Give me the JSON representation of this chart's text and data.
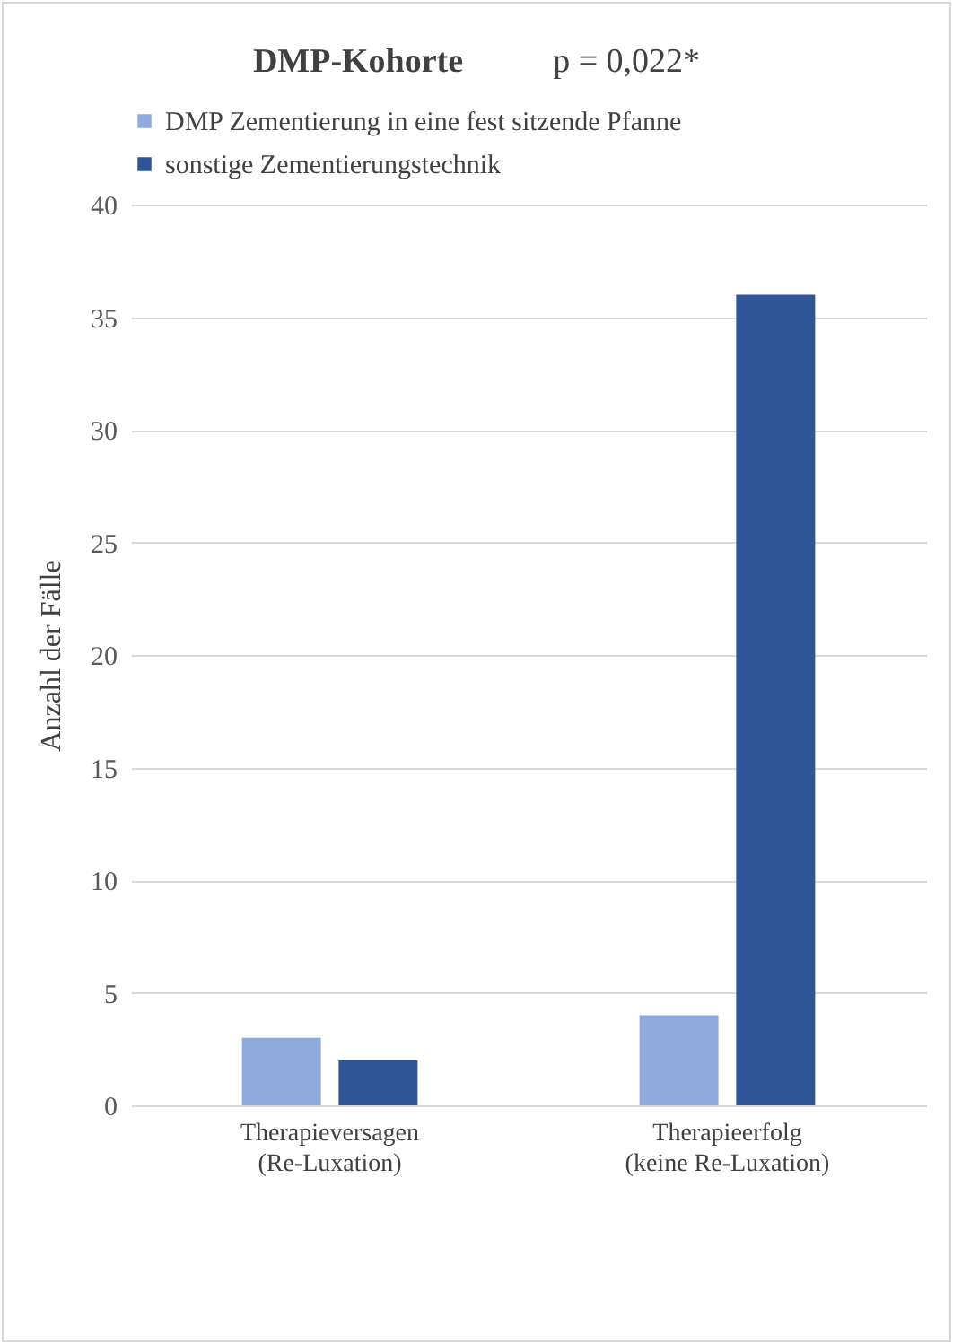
{
  "chart_data": {
    "type": "bar",
    "title": "DMP-Kohorte",
    "annotations": [
      "p = 0,022*"
    ],
    "ylabel": "Anzahl der Fälle",
    "categories": [
      "Therapieversagen\n(Re-Luxation)",
      "Therapieerfolg\n(keine Re-Luxation)"
    ],
    "series": [
      {
        "name": "DMP Zementierung in eine fest sitzende Pfanne",
        "color": "#8faadc",
        "values": [
          3,
          4
        ]
      },
      {
        "name": "sonstige Zementierungstechnik",
        "color": "#2f5597",
        "values": [
          2,
          36
        ]
      }
    ],
    "ylim": [
      0,
      40
    ],
    "yticks": [
      0,
      5,
      10,
      15,
      20,
      25,
      30,
      35,
      40
    ],
    "grid": "y",
    "legend": "top left"
  }
}
